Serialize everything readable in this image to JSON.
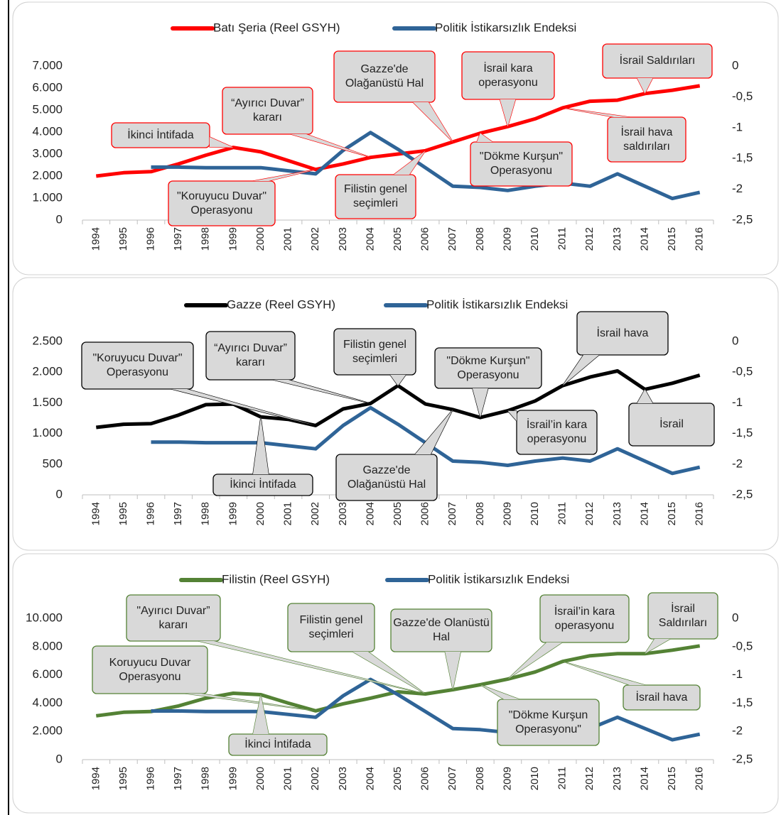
{
  "chart_data": [
    {
      "type": "line",
      "categories": [
        "1994",
        "1995",
        "1996",
        "1997",
        "1998",
        "1999",
        "2000",
        "2001",
        "2002",
        "2003",
        "2004",
        "2005",
        "2006",
        "2007",
        "2008",
        "2009",
        "2010",
        "2011",
        "2012",
        "2013",
        "2014",
        "2015",
        "2016"
      ],
      "series": [
        {
          "name": "Batı Şeria (Reel GSYH)",
          "color": "#ff0000",
          "values": [
            2000,
            2150,
            2200,
            2550,
            2950,
            3300,
            3100,
            2700,
            2300,
            2550,
            2850,
            3000,
            3150,
            3550,
            3950,
            4250,
            4600,
            5100,
            5400,
            5450,
            5750,
            5900,
            6100
          ]
        },
        {
          "name": "Politik İstikarsızlık Endeksi",
          "color": "#2f6497",
          "axis": "y2",
          "values": [
            null,
            null,
            -1.64,
            -1.64,
            -1.65,
            -1.65,
            -1.65,
            -1.7,
            -1.75,
            -1.37,
            -1.08,
            -1.35,
            -1.65,
            -1.95,
            -1.97,
            -2.02,
            -1.95,
            -1.9,
            -1.95,
            -1.75,
            -1.95,
            -2.15,
            -2.05
          ]
        }
      ],
      "ylim": [
        0,
        7000
      ],
      "yticks": [
        0,
        {
          "value": 1000,
          "label": "1.000"
        },
        {
          "value": 2000,
          "label": "2.000"
        },
        {
          "value": 3000,
          "label": "3.000"
        },
        {
          "value": 4000,
          "label": "4.000"
        },
        {
          "value": 5000,
          "label": "5.000"
        },
        {
          "value": 6000,
          "label": "6.000"
        },
        {
          "value": 7000,
          "label": "7.000"
        }
      ],
      "y2lim": [
        -2.5,
        0
      ],
      "y2ticks": [
        0,
        {
          "value": -0.5,
          "label": "-0,5"
        },
        -1,
        {
          "value": -1.5,
          "label": "-1,5"
        },
        -2,
        {
          "value": -2.5,
          "label": "-2,5"
        }
      ],
      "annotations": [
        "İkinci İntifada",
        "“Ayırıcı Duvar”\nkararı",
        "Gazze'de\nOlağanüstü Hal",
        "İsrail kara\noperasyonu",
        "İsrail Saldırıları",
        "İsrail hava\nsaldırıları",
        "\"Dökme Kurşun\"\nOperasyonu",
        "Filistin genel\nseçimleri",
        "\"Koruyucu Duvar\"\nOperasyonu"
      ]
    },
    {
      "type": "line",
      "categories": [
        "1994",
        "1995",
        "1996",
        "1997",
        "1998",
        "1999",
        "2000",
        "2001",
        "2002",
        "2003",
        "2004",
        "2005",
        "2006",
        "2007",
        "2008",
        "2009",
        "2010",
        "2011",
        "2012",
        "2013",
        "2014",
        "2015",
        "2016"
      ],
      "series": [
        {
          "name": "Gazze (Reel GSYH)",
          "color": "#000000",
          "values": [
            1100,
            1150,
            1160,
            1300,
            1470,
            1480,
            1270,
            1230,
            1130,
            1400,
            1490,
            1780,
            1480,
            1390,
            1260,
            1370,
            1530,
            1780,
            1920,
            2020,
            1720,
            1820,
            1950
          ]
        },
        {
          "name": "Politik İstikarsızlık Endeksi",
          "color": "#2f6497",
          "axis": "y2",
          "values": [
            null,
            null,
            -1.64,
            -1.64,
            -1.65,
            -1.65,
            -1.65,
            -1.7,
            -1.75,
            -1.37,
            -1.08,
            -1.35,
            -1.65,
            -1.95,
            -1.97,
            -2.02,
            -1.95,
            -1.9,
            -1.95,
            -1.75,
            -1.95,
            -2.15,
            -2.05
          ]
        }
      ],
      "ylim": [
        0,
        2500
      ],
      "yticks": [
        0,
        500,
        {
          "value": 1000,
          "label": "1.000"
        },
        {
          "value": 1500,
          "label": "1.500"
        },
        {
          "value": 2000,
          "label": "2.000"
        },
        {
          "value": 2500,
          "label": "2.500"
        }
      ],
      "y2lim": [
        -2.5,
        0
      ],
      "y2ticks": [
        0,
        {
          "value": -0.5,
          "label": "-0,5"
        },
        -1,
        {
          "value": -1.5,
          "label": "-1,5"
        },
        -2,
        {
          "value": -2.5,
          "label": "-2,5"
        }
      ],
      "annotations": [
        "\"Koruyucu Duvar\"\nOperasyonu",
        "“Ayırıcı Duvar”\nkararı",
        "Filistin genel\nseçimleri",
        "\"Dökme Kurşun\"\nOperasyonu",
        "İsrail hava",
        "İsrail",
        "İsrail’in kara\noperasyonu",
        "Gazze'de\nOlağanüstü Hal",
        "İkinci İntifada"
      ]
    },
    {
      "type": "line",
      "categories": [
        "1994",
        "1995",
        "1996",
        "1997",
        "1998",
        "1999",
        "2000",
        "2001",
        "2002",
        "2003",
        "2004",
        "2005",
        "2006",
        "2007",
        "2008",
        "2009",
        "2010",
        "2011",
        "2012",
        "2013",
        "2014",
        "2015",
        "2016"
      ],
      "series": [
        {
          "name": "Filistin (Reel GSYH)",
          "color": "#548235",
          "values": [
            3100,
            3350,
            3400,
            3800,
            4350,
            4700,
            4600,
            4000,
            3450,
            3950,
            4350,
            4800,
            4650,
            4950,
            5300,
            5700,
            6200,
            6950,
            7350,
            7500,
            7500,
            7750,
            8050
          ]
        },
        {
          "name": "Politik İstikarsızlık Endeksi",
          "color": "#2f6497",
          "axis": "y2",
          "values": [
            null,
            null,
            -1.64,
            -1.64,
            -1.65,
            -1.65,
            -1.65,
            -1.7,
            -1.75,
            -1.37,
            -1.08,
            -1.35,
            -1.65,
            -1.95,
            -1.97,
            -2.02,
            -1.95,
            -1.9,
            -1.95,
            -1.75,
            -1.95,
            -2.15,
            -2.05
          ]
        }
      ],
      "ylim": [
        0,
        10000
      ],
      "yticks": [
        0,
        {
          "value": 2000,
          "label": "2.000"
        },
        {
          "value": 4000,
          "label": "4.000"
        },
        {
          "value": 6000,
          "label": "6.000"
        },
        {
          "value": 8000,
          "label": "8.000"
        },
        {
          "value": 10000,
          "label": "10.000"
        }
      ],
      "y2lim": [
        -2.5,
        0
      ],
      "y2ticks": [
        0,
        {
          "value": -0.5,
          "label": "-0,5"
        },
        -1,
        {
          "value": -1.5,
          "label": "-1,5"
        },
        -2,
        {
          "value": -2.5,
          "label": "-2,5"
        }
      ],
      "annotations": [
        "\"Ayırıcı Duvar”\nkararı",
        "Koruyucu Duvar\nOperasyonu",
        "İkinci İntifada",
        "Filistin genel\nseçimleri",
        "Gazze'de Olanüstü\nHal",
        "İsrail’in kara\noperasyonu",
        "İsrail\nSaldırıları",
        "İsrail hava",
        "\"Dökme Kurşun\nOperasyonu\""
      ]
    }
  ]
}
